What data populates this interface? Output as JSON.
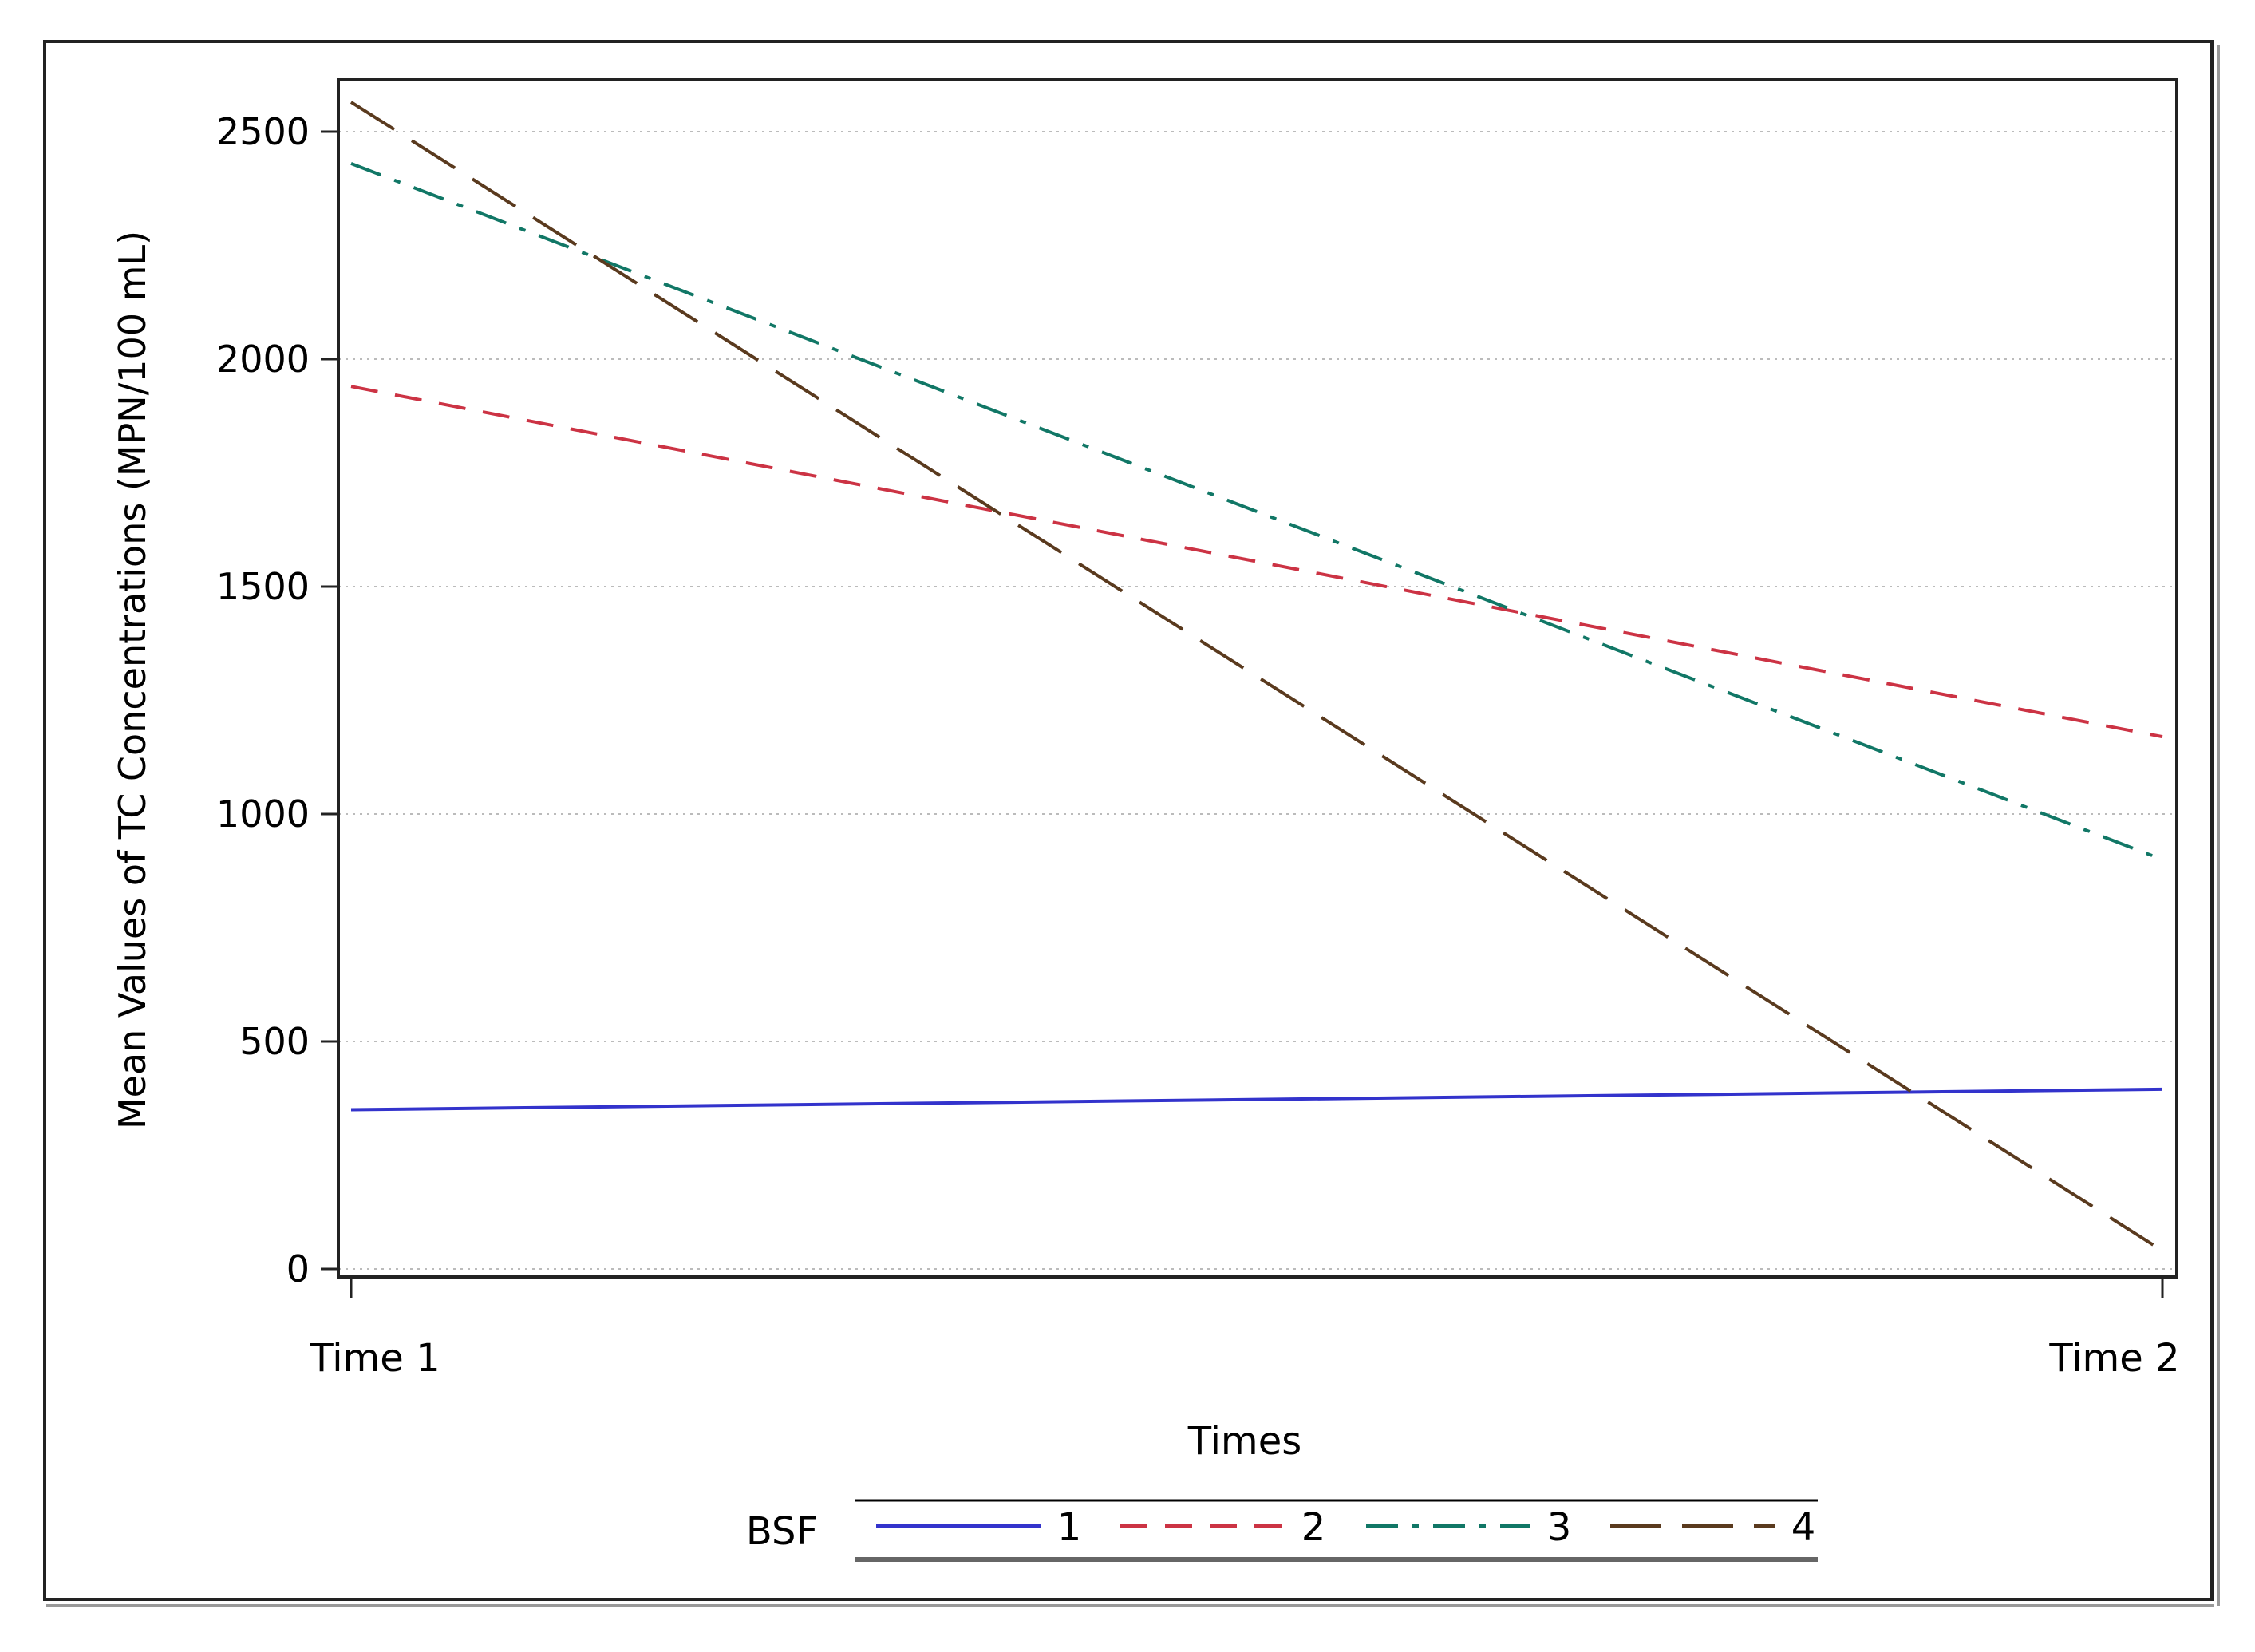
{
  "chart_data": {
    "type": "line",
    "title": "",
    "xlabel": "Times",
    "ylabel": "Mean Values of TC Concentrations (MPN/100 mL)",
    "categories": [
      "Time 1",
      "Time 2"
    ],
    "ylim": [
      0,
      2600
    ],
    "yticks": [
      0,
      500,
      1000,
      1500,
      2000,
      2500
    ],
    "ytick_labels": [
      "0",
      "500",
      "1000",
      "1500",
      "2000",
      "2500"
    ],
    "grid": "horizontal dotted",
    "legend": {
      "title": "BSF",
      "placement": "bottom"
    },
    "series": [
      {
        "name": "1",
        "values": [
          350,
          395
        ],
        "color": "#3333cc",
        "dash": "solid"
      },
      {
        "name": "2",
        "values": [
          1940,
          1170
        ],
        "color": "#cc3344",
        "dash": "dash"
      },
      {
        "name": "3",
        "values": [
          2430,
          900
        ],
        "color": "#117766",
        "dash": "dashdot"
      },
      {
        "name": "4",
        "values": [
          2565,
          40
        ],
        "color": "#5a3a1e",
        "dash": "longdash"
      }
    ]
  }
}
